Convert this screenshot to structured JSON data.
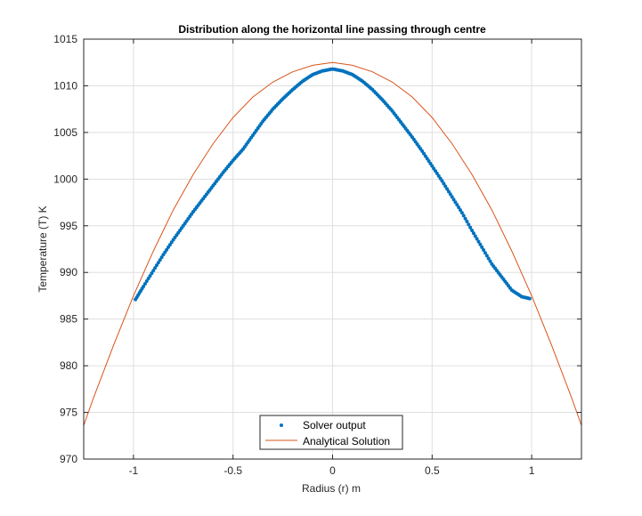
{
  "chart_data": {
    "type": "scatter",
    "title": "Distribution along the horizontal line passing through centre",
    "xlabel": "Radius (r) m",
    "ylabel": "Temperature (T) K",
    "xlim": [
      -1.25,
      1.25
    ],
    "ylim": [
      970,
      1015
    ],
    "xticks": [
      -1,
      -0.5,
      0,
      0.5,
      1
    ],
    "xtick_labels": [
      "-1",
      "-0.5",
      "0",
      "0.5",
      "1"
    ],
    "yticks": [
      970,
      975,
      980,
      985,
      990,
      995,
      1000,
      1005,
      1010,
      1015
    ],
    "ytick_labels": [
      "970",
      "975",
      "980",
      "985",
      "990",
      "995",
      "1000",
      "1005",
      "1010",
      "1015"
    ],
    "grid": true,
    "legend_position": "bottom-center",
    "series": [
      {
        "name": "Solver output",
        "style": "markers",
        "color": "#0072BD",
        "x": [
          -0.99,
          -0.95,
          -0.9,
          -0.85,
          -0.8,
          -0.75,
          -0.7,
          -0.65,
          -0.6,
          -0.55,
          -0.5,
          -0.45,
          -0.4,
          -0.35,
          -0.3,
          -0.25,
          -0.2,
          -0.15,
          -0.1,
          -0.05,
          0,
          0.05,
          0.1,
          0.15,
          0.2,
          0.25,
          0.3,
          0.35,
          0.4,
          0.45,
          0.5,
          0.55,
          0.6,
          0.65,
          0.7,
          0.75,
          0.8,
          0.85,
          0.9,
          0.95,
          0.99
        ],
        "y": [
          987.1,
          988.5,
          990.2,
          991.9,
          993.5,
          995.0,
          996.5,
          997.9,
          999.3,
          1000.7,
          1002.0,
          1003.2,
          1004.7,
          1006.2,
          1007.5,
          1008.6,
          1009.6,
          1010.5,
          1011.2,
          1011.6,
          1011.8,
          1011.6,
          1011.2,
          1010.5,
          1009.6,
          1008.5,
          1007.3,
          1005.9,
          1004.5,
          1003.0,
          1001.4,
          999.8,
          998.1,
          996.4,
          994.5,
          992.7,
          990.9,
          989.5,
          988.1,
          987.4,
          987.2
        ]
      },
      {
        "name": "Analytical Solution",
        "style": "line",
        "color": "#D95319",
        "x": [
          -1.25,
          -1.2,
          -1.1,
          -1.0,
          -0.9,
          -0.8,
          -0.7,
          -0.6,
          -0.5,
          -0.4,
          -0.3,
          -0.2,
          -0.1,
          0,
          0.1,
          0.2,
          0.3,
          0.4,
          0.5,
          0.6,
          0.7,
          0.8,
          0.9,
          1.0,
          1.1,
          1.2,
          1.25
        ],
        "y": [
          973.6,
          976.6,
          982.2,
          987.5,
          992.3,
          996.7,
          1000.5,
          1003.8,
          1006.6,
          1008.8,
          1010.4,
          1011.5,
          1012.2,
          1012.5,
          1012.2,
          1011.5,
          1010.4,
          1008.8,
          1006.6,
          1003.8,
          1000.5,
          996.7,
          992.3,
          987.5,
          982.2,
          976.6,
          973.6
        ]
      }
    ]
  }
}
